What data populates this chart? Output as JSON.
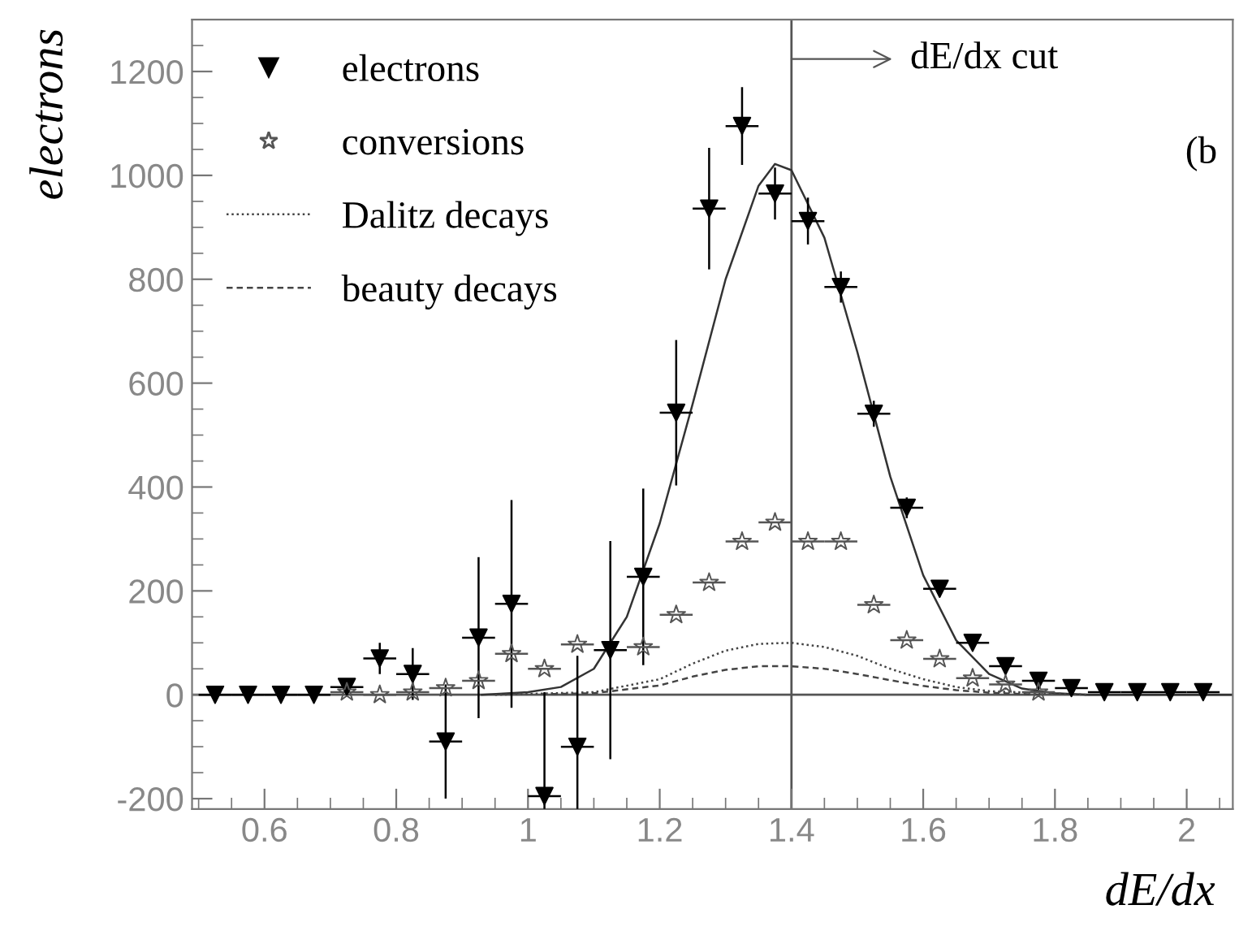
{
  "chart_data": {
    "type": "scatter",
    "xlabel": "dE/dx",
    "ylabel": "electrons",
    "xlim": [
      0.49,
      2.07
    ],
    "ylim": [
      -220,
      1300
    ],
    "xticks": [
      0.6,
      0.8,
      {
        "value": 1,
        "label": "1"
      },
      1.2,
      1.4,
      1.6,
      1.8,
      {
        "value": 2,
        "label": "2"
      }
    ],
    "yticks": [
      -200,
      0,
      200,
      400,
      600,
      800,
      1000,
      1200
    ],
    "grid": false,
    "legend": "top left",
    "series": [
      {
        "name": "electrons",
        "marker": "triangle",
        "color": "#000000",
        "x": [
          0.525,
          0.575,
          0.625,
          0.675,
          0.725,
          0.775,
          0.825,
          0.875,
          0.925,
          0.975,
          1.025,
          1.075,
          1.125,
          1.175,
          1.225,
          1.275,
          1.325,
          1.375,
          1.425,
          1.475,
          1.525,
          1.575,
          1.625,
          1.675,
          1.725,
          1.775,
          1.825,
          1.875,
          1.925,
          1.975,
          2.025
        ],
        "values": [
          0,
          0,
          0,
          0,
          15,
          70,
          40,
          -90,
          110,
          175,
          -195,
          -100,
          86,
          227,
          543,
          936,
          1095,
          965,
          912,
          785,
          541,
          360,
          204,
          100,
          55,
          27,
          13,
          5,
          5,
          5,
          5
        ],
        "errors": [
          null,
          null,
          null,
          null,
          10,
          30,
          50,
          110,
          155,
          200,
          200,
          175,
          210,
          170,
          140,
          117,
          75,
          50,
          45,
          30,
          25,
          20,
          15,
          12,
          10,
          null,
          null,
          null,
          null,
          null,
          null
        ],
        "xerrors": [
          0.025,
          0.025,
          0.025,
          0.025,
          0.025,
          0.025,
          0.025,
          0.025,
          0.025,
          0.025,
          0.025,
          0.025,
          0.025,
          0.025,
          0.025,
          0.025,
          0.025,
          0.025,
          0.025,
          0.025,
          0.025,
          0.025,
          0.025,
          0.025,
          0.025,
          0.025,
          0.025,
          0.025,
          0.025,
          0.025,
          0.025
        ]
      },
      {
        "name": "conversions",
        "marker": "star",
        "color": "#555555",
        "x": [
          0.725,
          0.775,
          0.825,
          0.875,
          0.925,
          0.975,
          1.025,
          1.075,
          1.125,
          1.175,
          1.225,
          1.275,
          1.325,
          1.375,
          1.425,
          1.475,
          1.525,
          1.575,
          1.625,
          1.675,
          1.725,
          1.775
        ],
        "values": [
          5,
          0,
          5,
          13,
          27,
          79,
          50,
          97,
          null,
          92,
          154,
          216,
          295,
          332,
          295,
          295,
          173,
          105,
          69,
          32,
          20,
          5
        ],
        "xerrors": [
          0.025,
          0.025,
          0.025,
          0.025,
          0.025,
          0.025,
          0.025,
          0.025,
          null,
          0.025,
          0.025,
          0.025,
          0.025,
          0.025,
          0.025,
          0.025,
          0.025,
          0.025,
          0.025,
          0.025,
          0.025,
          0.025
        ]
      },
      {
        "type": "line",
        "line_style": "solid",
        "color": "#333333",
        "x": [
          0.93,
          1.0,
          1.05,
          1.1,
          1.15,
          1.2,
          1.25,
          1.3,
          1.35,
          1.375,
          1.4,
          1.45,
          1.5,
          1.55,
          1.6,
          1.65,
          1.7,
          1.75,
          1.8,
          1.85,
          2.07
        ],
        "values": [
          0,
          5,
          15,
          50,
          150,
          330,
          560,
          800,
          980,
          1022,
          1010,
          880,
          660,
          420,
          230,
          105,
          40,
          12,
          3,
          0,
          0
        ]
      },
      {
        "name": "Dalitz decays",
        "type": "line",
        "line_style": "dotted",
        "color": "#444444",
        "x": [
          0.95,
          1.1,
          1.2,
          1.25,
          1.3,
          1.35,
          1.4,
          1.45,
          1.5,
          1.55,
          1.6,
          1.65,
          1.7,
          1.85
        ],
        "values": [
          0,
          5,
          30,
          60,
          85,
          98,
          100,
          92,
          75,
          50,
          30,
          15,
          7,
          0
        ]
      },
      {
        "name": "beauty decays",
        "type": "line",
        "line_style": "dashed",
        "color": "#444444",
        "x": [
          1.02,
          1.1,
          1.2,
          1.25,
          1.3,
          1.35,
          1.4,
          1.45,
          1.5,
          1.55,
          1.6,
          1.65,
          1.7,
          1.78
        ],
        "values": [
          1,
          3,
          18,
          35,
          48,
          55,
          55,
          50,
          40,
          28,
          17,
          9,
          4,
          0
        ]
      }
    ],
    "ref_lines": [
      {
        "axis": "x",
        "value": 1.4,
        "color": "#555555"
      },
      {
        "axis": "y",
        "value": 0,
        "color": "#555555"
      }
    ],
    "annotations": [
      "dE/dx cut",
      "(b"
    ]
  }
}
